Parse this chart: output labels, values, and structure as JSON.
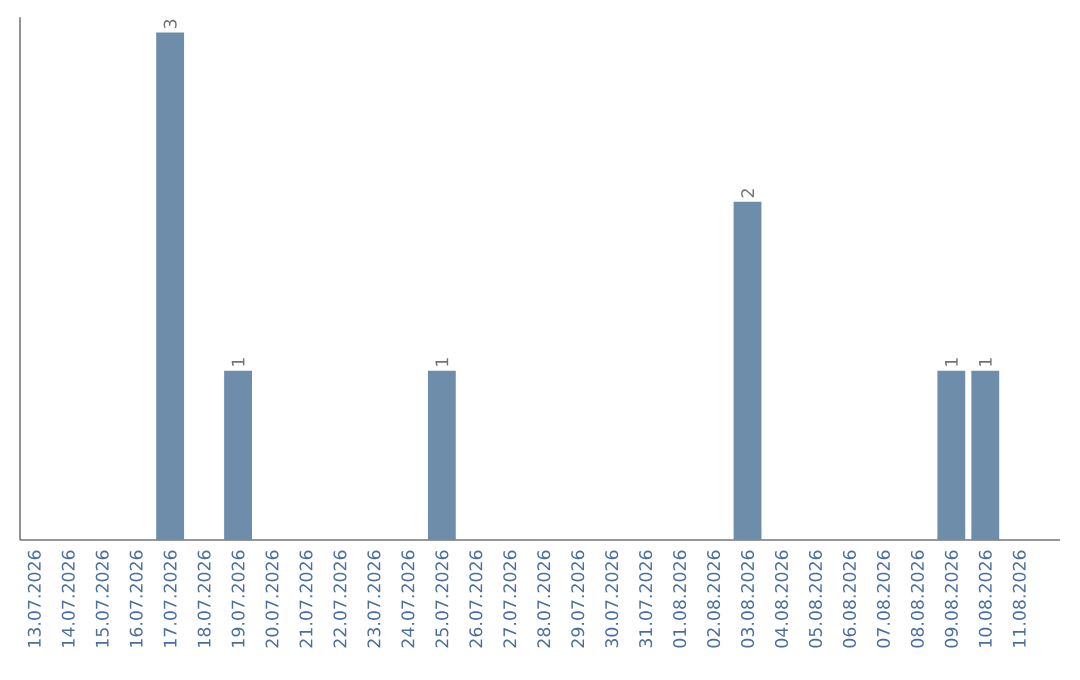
{
  "chart_data": {
    "type": "bar",
    "categories": [
      "13.07.2026",
      "14.07.2026",
      "15.07.2026",
      "16.07.2026",
      "17.07.2026",
      "18.07.2026",
      "19.07.2026",
      "20.07.2026",
      "21.07.2026",
      "22.07.2026",
      "23.07.2026",
      "24.07.2026",
      "25.07.2026",
      "26.07.2026",
      "27.07.2026",
      "28.07.2026",
      "29.07.2026",
      "30.07.2026",
      "31.07.2026",
      "01.08.2026",
      "02.08.2026",
      "03.08.2026",
      "04.08.2026",
      "05.08.2026",
      "06.08.2026",
      "07.08.2026",
      "08.08.2026",
      "09.08.2026",
      "10.08.2026",
      "11.08.2026"
    ],
    "values": [
      0,
      0,
      0,
      0,
      3,
      0,
      1,
      0,
      0,
      0,
      0,
      0,
      1,
      0,
      0,
      0,
      0,
      0,
      0,
      0,
      0,
      2,
      0,
      0,
      0,
      0,
      0,
      1,
      1,
      0
    ],
    "value_labels": [
      null,
      null,
      null,
      null,
      "3",
      null,
      "1",
      null,
      null,
      null,
      null,
      null,
      "1",
      null,
      null,
      null,
      null,
      null,
      null,
      null,
      null,
      "2",
      null,
      null,
      null,
      null,
      null,
      "1",
      "1",
      null
    ],
    "color": "#6d8dab",
    "tick_labels": "x",
    "grid": false
  }
}
